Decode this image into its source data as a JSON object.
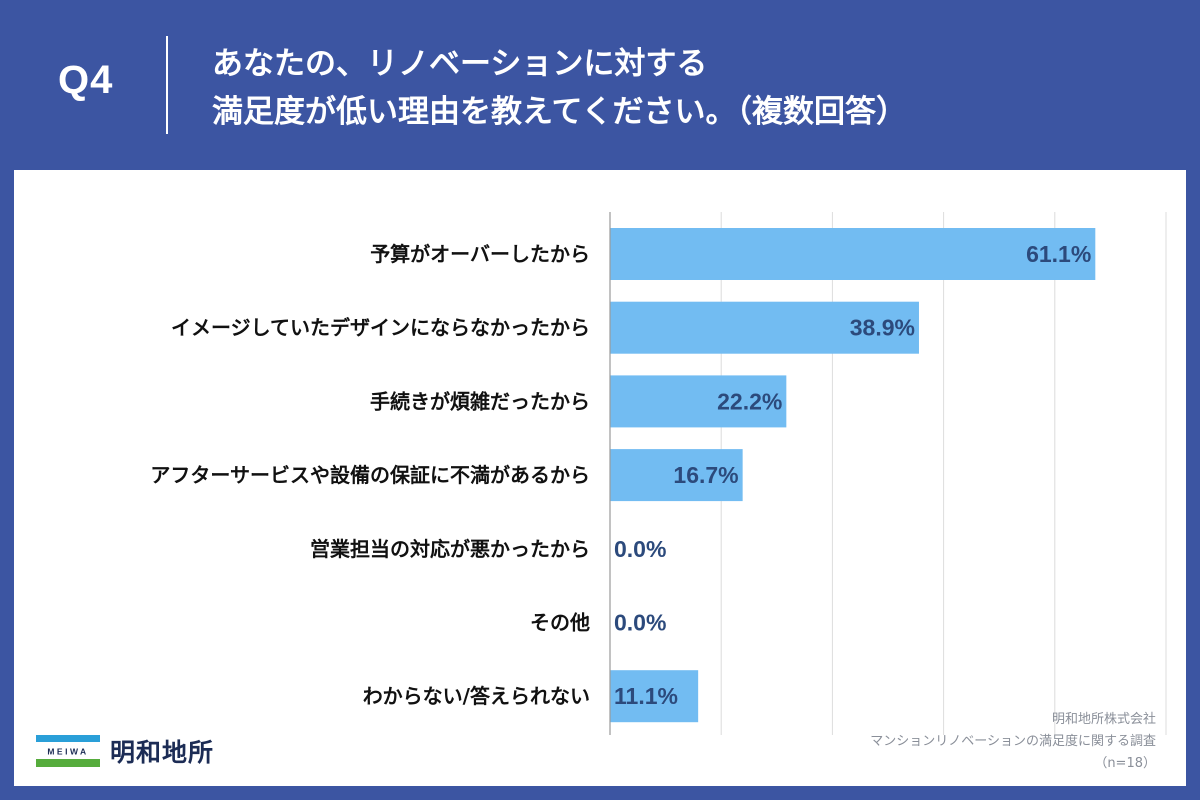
{
  "header": {
    "question_label": "Q4",
    "title_line1": "あなたの、リノベーションに対する",
    "title_line2": "満足度が低い理由を教えてください。（複数回答）"
  },
  "chart_data": {
    "type": "bar",
    "orientation": "horizontal",
    "title": "あなたの、リノベーションに対する満足度が低い理由を教えてください。（複数回答）",
    "categories": [
      "予算がオーバーしたから",
      "イメージしていたデザインにならなかったから",
      "手続きが煩雑だったから",
      "アフターサービスや設備の保証に不満があるから",
      "営業担当の対応が悪かったから",
      "その他",
      "わからない/答えられない"
    ],
    "values": [
      61.1,
      38.9,
      22.2,
      16.7,
      0.0,
      0.0,
      11.1
    ],
    "value_labels": [
      "61.1%",
      "38.9%",
      "22.2%",
      "16.7%",
      "0.0%",
      "0.0%",
      "11.1%"
    ],
    "unit": "%",
    "xlim": [
      0,
      70
    ],
    "grid": true,
    "bar_color": "#72bcf2"
  },
  "footer": {
    "logo_mark_text": "MEIWA",
    "company_name": "明和地所",
    "source_company": "明和地所株式会社",
    "source_survey": "マンションリノベーションの満足度に関する調査",
    "sample_size": "（n=18）"
  },
  "colors": {
    "background": "#3c55a2",
    "bar": "#72bcf2",
    "value_text": "#2c4a7c"
  }
}
